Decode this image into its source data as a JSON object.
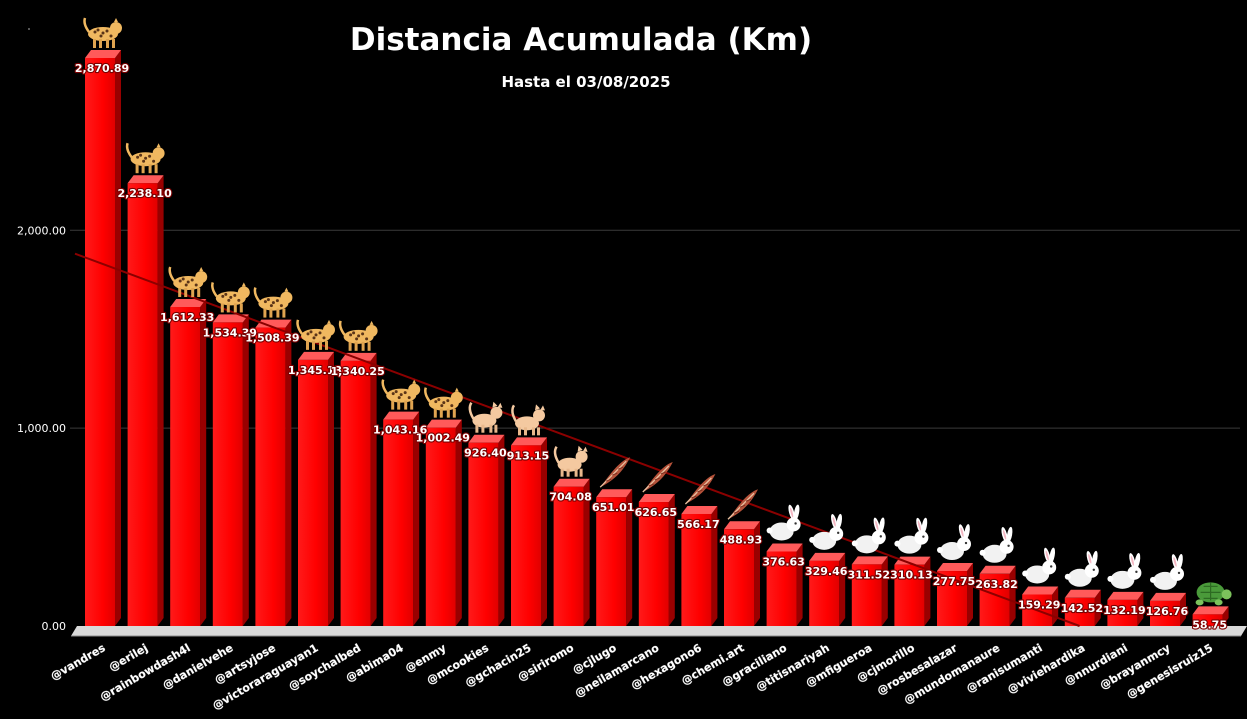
{
  "chart_data": {
    "type": "bar",
    "title": "Distancia Acumulada (Km)",
    "subtitle": "Hasta el 03/08/2025",
    "ylim": [
      0,
      2870.89
    ],
    "yticks": [
      "0.00",
      "1,000.00",
      "2,000.00"
    ],
    "ytick_values": [
      0,
      1000,
      2000
    ],
    "grid": true,
    "trendline": true,
    "colors": {
      "bar": "#ff0000",
      "bar_side": "#990000",
      "bar_top": "#ff5a5a",
      "trend": "#8b0000",
      "grid": "#3a3a3a"
    },
    "categories": [
      "@vandres",
      "@erilej",
      "@rainbowdash4l",
      "@danielvehe",
      "@artsyjose",
      "@victoraraguayan1",
      "@soychalbed",
      "@abima04",
      "@enmy",
      "@mcookies",
      "@gchacin25",
      "@siriromo",
      "@cjlugo",
      "@neilamarcano",
      "@hexagono6",
      "@chemi.art",
      "@graciliano",
      "@titisnariyah",
      "@mfigueroa",
      "@cjmorillo",
      "@rosbesalazar",
      "@mundomanaure",
      "@ranisumanti",
      "@viviehardika",
      "@nnurdiani",
      "@brayanmcy",
      "@genesisruiz15"
    ],
    "values": [
      2870.89,
      2238.1,
      1612.33,
      1534.39,
      1508.39,
      1345.13,
      1340.25,
      1043.16,
      1002.49,
      926.4,
      913.15,
      704.08,
      651.01,
      626.65,
      566.17,
      488.93,
      376.63,
      329.46,
      311.52,
      310.13,
      277.75,
      263.82,
      159.29,
      142.52,
      132.19,
      126.76,
      58.75
    ],
    "value_labels": [
      "2,870.89",
      "2,238.10",
      "1,612.33",
      "1,534.39",
      "1,508.39",
      "1,345.13",
      "1,340.25",
      "1,043.16",
      "1,002.49",
      "926.40",
      "913.15",
      "704.08",
      "651.01",
      "626.65",
      "566.17",
      "488.93",
      "376.63",
      "329.46",
      "311.52",
      "310.13",
      "277.75",
      "263.82",
      "159.29",
      "142.52",
      "132.19",
      "126.76",
      "58.75"
    ],
    "icons": [
      "leopard",
      "leopard",
      "leopard",
      "leopard",
      "leopard",
      "leopard",
      "leopard",
      "leopard",
      "leopard",
      "cat",
      "cat",
      "cat",
      "feather",
      "feather",
      "feather",
      "feather",
      "rabbit",
      "rabbit",
      "rabbit",
      "rabbit",
      "rabbit",
      "rabbit",
      "rabbit",
      "rabbit",
      "rabbit",
      "rabbit",
      "turtle"
    ]
  }
}
